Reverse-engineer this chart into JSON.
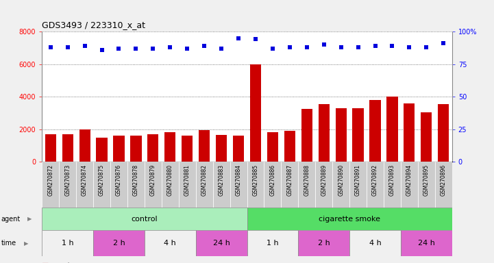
{
  "title": "GDS3493 / 223310_x_at",
  "samples": [
    "GSM270872",
    "GSM270873",
    "GSM270874",
    "GSM270875",
    "GSM270876",
    "GSM270878",
    "GSM270879",
    "GSM270880",
    "GSM270881",
    "GSM270882",
    "GSM270883",
    "GSM270884",
    "GSM270885",
    "GSM270886",
    "GSM270887",
    "GSM270888",
    "GSM270889",
    "GSM270890",
    "GSM270891",
    "GSM270892",
    "GSM270893",
    "GSM270894",
    "GSM270895",
    "GSM270896"
  ],
  "counts": [
    1700,
    1700,
    2000,
    1500,
    1600,
    1600,
    1700,
    1800,
    1600,
    1950,
    1650,
    1600,
    6000,
    1800,
    1900,
    3250,
    3550,
    3300,
    3300,
    3800,
    4000,
    3600,
    3050,
    3550
  ],
  "percentile_ranks": [
    88,
    88,
    89,
    86,
    87,
    87,
    87,
    88,
    87,
    89,
    87,
    95,
    94,
    87,
    88,
    88,
    90,
    88,
    88,
    89,
    89,
    88,
    88,
    91
  ],
  "bar_color": "#cc0000",
  "dot_color": "#0000dd",
  "agent_groups": [
    {
      "label": "control",
      "start": 0,
      "end": 12,
      "color": "#aaeebb"
    },
    {
      "label": "cigarette smoke",
      "start": 12,
      "end": 24,
      "color": "#55dd66"
    }
  ],
  "time_groups": [
    {
      "label": "1 h",
      "start": 0,
      "end": 3,
      "color": "#f0f0f0"
    },
    {
      "label": "2 h",
      "start": 3,
      "end": 6,
      "color": "#dd66cc"
    },
    {
      "label": "4 h",
      "start": 6,
      "end": 9,
      "color": "#f0f0f0"
    },
    {
      "label": "24 h",
      "start": 9,
      "end": 12,
      "color": "#dd66cc"
    },
    {
      "label": "1 h",
      "start": 12,
      "end": 15,
      "color": "#f0f0f0"
    },
    {
      "label": "2 h",
      "start": 15,
      "end": 18,
      "color": "#dd66cc"
    },
    {
      "label": "4 h",
      "start": 18,
      "end": 21,
      "color": "#f0f0f0"
    },
    {
      "label": "24 h",
      "start": 21,
      "end": 24,
      "color": "#dd66cc"
    }
  ],
  "ylim_left": [
    0,
    8000
  ],
  "ylim_right": [
    0,
    100
  ],
  "yticks_left": [
    0,
    2000,
    4000,
    6000,
    8000
  ],
  "yticks_right": [
    0,
    25,
    50,
    75,
    100
  ],
  "background_color": "#f0f0f0",
  "plot_bg_color": "#ffffff",
  "tick_bg_color": "#cccccc"
}
